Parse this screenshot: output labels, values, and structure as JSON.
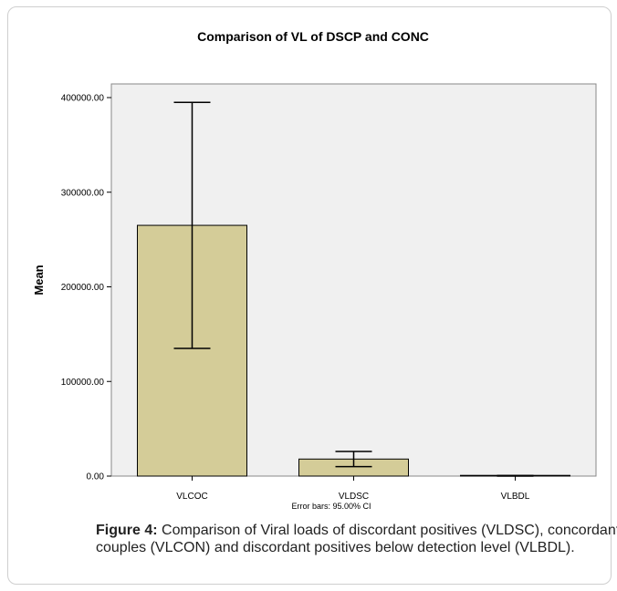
{
  "chart_data": {
    "type": "bar",
    "title": "Comparison of VL of DSCP and CONC",
    "xlabel": "",
    "ylabel": "Mean",
    "categories": [
      "VLCOC",
      "VLDSC",
      "VLBDL"
    ],
    "values": [
      265000,
      18000,
      300
    ],
    "error_bars": {
      "lower": [
        135000,
        10000,
        0
      ],
      "upper": [
        395000,
        26000,
        600
      ]
    },
    "ylim": [
      0,
      400000
    ],
    "yticks": [
      "0.00",
      "100000.00",
      "200000.00",
      "300000.00",
      "400000.00"
    ],
    "ytick_values": [
      0,
      100000,
      200000,
      300000,
      400000
    ],
    "grid": false,
    "note": "Error bars: 95.00% CI",
    "colors": {
      "bar": "#d4cc98",
      "plot_bg": "#f0f0f0",
      "stroke": "#000000"
    }
  },
  "caption": {
    "label": "Figure 4:",
    "text": " Comparison of Viral loads of discordant positives (VLDSC), concordant couples (VLCON) and discordant positives below detection level (VLBDL)."
  }
}
